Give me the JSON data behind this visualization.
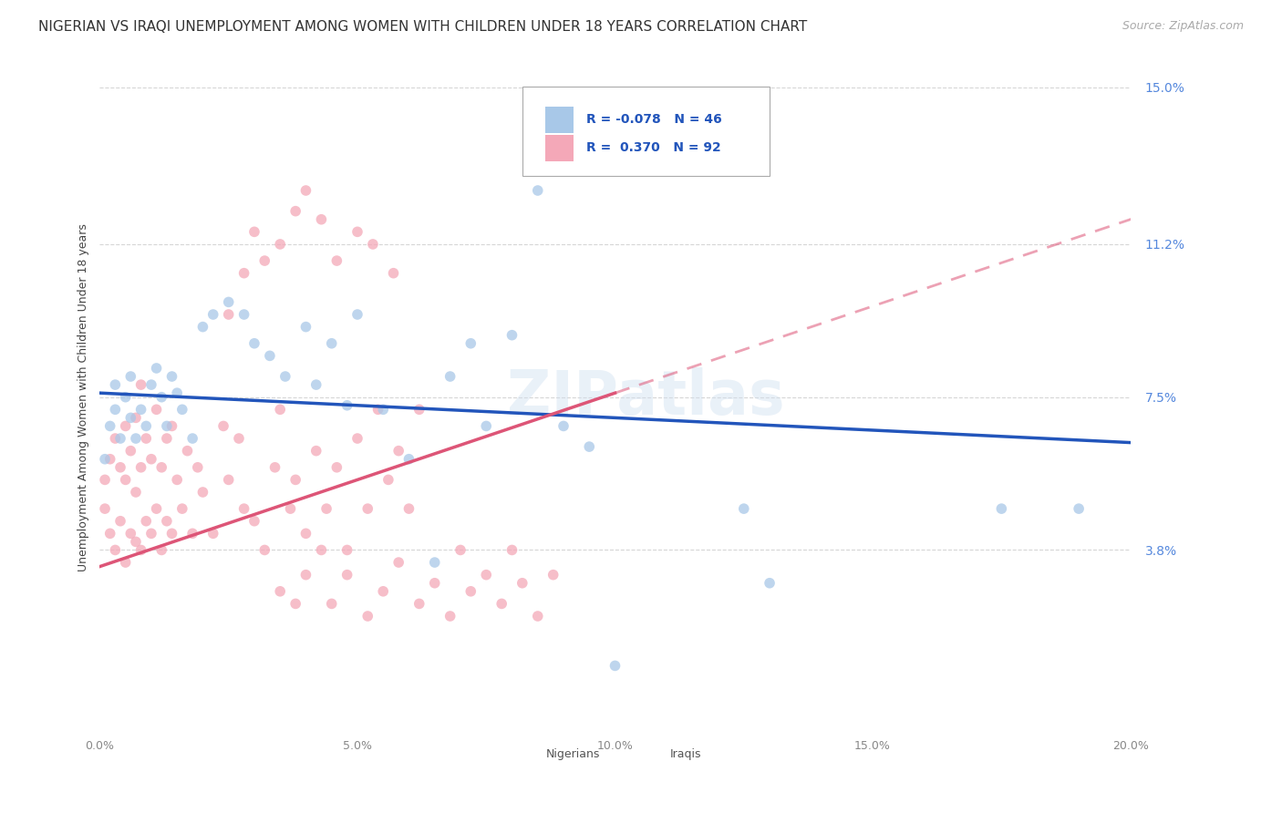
{
  "title": "NIGERIAN VS IRAQI UNEMPLOYMENT AMONG WOMEN WITH CHILDREN UNDER 18 YEARS CORRELATION CHART",
  "source": "Source: ZipAtlas.com",
  "ylabel": "Unemployment Among Women with Children Under 18 years",
  "xlim": [
    0.0,
    0.2
  ],
  "ylim": [
    -0.005,
    0.155
  ],
  "xtick_labels": [
    "0.0%",
    "5.0%",
    "10.0%",
    "15.0%",
    "20.0%"
  ],
  "xtick_vals": [
    0.0,
    0.05,
    0.1,
    0.15,
    0.2
  ],
  "ytick_labels_right": [
    "15.0%",
    "11.2%",
    "7.5%",
    "3.8%"
  ],
  "ytick_vals_right": [
    0.15,
    0.112,
    0.075,
    0.038
  ],
  "watermark": "ZIPatlas",
  "nigerian_color": "#a8c8e8",
  "iraqi_color": "#f4a8b8",
  "nigerian_line_color": "#2255bb",
  "iraqi_line_color": "#dd5577",
  "legend_text_color": "#2255bb",
  "background_color": "#ffffff",
  "grid_color": "#cccccc",
  "nigerian_line_x0": 0.0,
  "nigerian_line_y0": 0.076,
  "nigerian_line_x1": 0.2,
  "nigerian_line_y1": 0.064,
  "iraqi_line_x0": 0.0,
  "iraqi_line_y0": 0.034,
  "iraqi_line_x1": 0.2,
  "iraqi_line_y1": 0.118,
  "iraqi_line_solid_end": 0.1,
  "nigerian_x": [
    0.001,
    0.002,
    0.003,
    0.003,
    0.004,
    0.005,
    0.006,
    0.006,
    0.007,
    0.008,
    0.009,
    0.01,
    0.011,
    0.012,
    0.013,
    0.014,
    0.015,
    0.016,
    0.018,
    0.02,
    0.022,
    0.025,
    0.028,
    0.03,
    0.033,
    0.036,
    0.04,
    0.042,
    0.045,
    0.048,
    0.05,
    0.055,
    0.06,
    0.065,
    0.068,
    0.072,
    0.075,
    0.08,
    0.085,
    0.09,
    0.095,
    0.1,
    0.125,
    0.13,
    0.175,
    0.19
  ],
  "nigerian_y": [
    0.06,
    0.068,
    0.072,
    0.078,
    0.065,
    0.075,
    0.07,
    0.08,
    0.065,
    0.072,
    0.068,
    0.078,
    0.082,
    0.075,
    0.068,
    0.08,
    0.076,
    0.072,
    0.065,
    0.092,
    0.095,
    0.098,
    0.095,
    0.088,
    0.085,
    0.08,
    0.092,
    0.078,
    0.088,
    0.073,
    0.095,
    0.072,
    0.06,
    0.035,
    0.08,
    0.088,
    0.068,
    0.09,
    0.125,
    0.068,
    0.063,
    0.01,
    0.048,
    0.03,
    0.048,
    0.048
  ],
  "iraqi_x": [
    0.001,
    0.001,
    0.002,
    0.002,
    0.003,
    0.003,
    0.004,
    0.004,
    0.005,
    0.005,
    0.005,
    0.006,
    0.006,
    0.007,
    0.007,
    0.007,
    0.008,
    0.008,
    0.008,
    0.009,
    0.009,
    0.01,
    0.01,
    0.011,
    0.011,
    0.012,
    0.012,
    0.013,
    0.013,
    0.014,
    0.014,
    0.015,
    0.016,
    0.017,
    0.018,
    0.019,
    0.02,
    0.022,
    0.024,
    0.025,
    0.027,
    0.028,
    0.03,
    0.032,
    0.034,
    0.035,
    0.037,
    0.038,
    0.04,
    0.042,
    0.044,
    0.046,
    0.048,
    0.05,
    0.052,
    0.054,
    0.056,
    0.058,
    0.06,
    0.062,
    0.035,
    0.038,
    0.04,
    0.043,
    0.045,
    0.048,
    0.052,
    0.055,
    0.058,
    0.062,
    0.065,
    0.068,
    0.07,
    0.072,
    0.075,
    0.078,
    0.08,
    0.082,
    0.085,
    0.088,
    0.025,
    0.028,
    0.03,
    0.032,
    0.035,
    0.038,
    0.04,
    0.043,
    0.046,
    0.05,
    0.053,
    0.057
  ],
  "iraqi_y": [
    0.048,
    0.055,
    0.042,
    0.06,
    0.038,
    0.065,
    0.045,
    0.058,
    0.035,
    0.055,
    0.068,
    0.042,
    0.062,
    0.04,
    0.052,
    0.07,
    0.038,
    0.058,
    0.078,
    0.045,
    0.065,
    0.042,
    0.06,
    0.048,
    0.072,
    0.038,
    0.058,
    0.045,
    0.065,
    0.042,
    0.068,
    0.055,
    0.048,
    0.062,
    0.042,
    0.058,
    0.052,
    0.042,
    0.068,
    0.055,
    0.065,
    0.048,
    0.045,
    0.038,
    0.058,
    0.072,
    0.048,
    0.055,
    0.042,
    0.062,
    0.048,
    0.058,
    0.038,
    0.065,
    0.048,
    0.072,
    0.055,
    0.062,
    0.048,
    0.072,
    0.028,
    0.025,
    0.032,
    0.038,
    0.025,
    0.032,
    0.022,
    0.028,
    0.035,
    0.025,
    0.03,
    0.022,
    0.038,
    0.028,
    0.032,
    0.025,
    0.038,
    0.03,
    0.022,
    0.032,
    0.095,
    0.105,
    0.115,
    0.108,
    0.112,
    0.12,
    0.125,
    0.118,
    0.108,
    0.115,
    0.112,
    0.105
  ],
  "title_fontsize": 11,
  "axis_fontsize": 9,
  "tick_fontsize": 9,
  "source_fontsize": 9
}
